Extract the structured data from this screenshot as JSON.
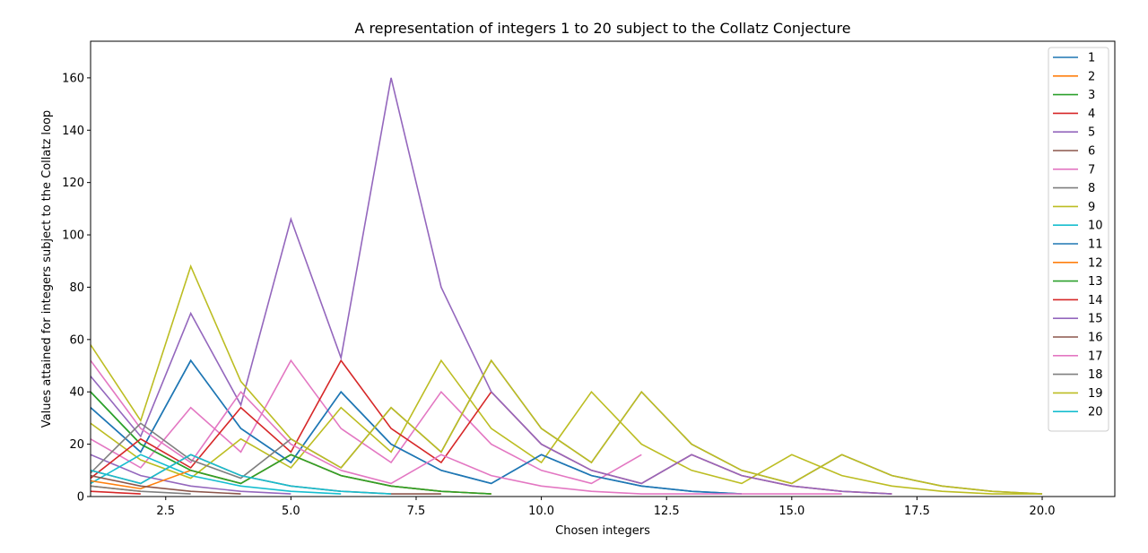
{
  "chart_data": {
    "type": "line",
    "title": "A representation of integers 1 to 20 subject to the Collatz Conjecture",
    "xlabel": "Chosen integers",
    "ylabel": "Values attained for integers subject to the Collatz loop",
    "xlim": [
      1,
      21.45
    ],
    "ylim": [
      0,
      174
    ],
    "xticks": [
      2.5,
      5.0,
      7.5,
      10.0,
      12.5,
      15.0,
      17.5,
      20.0
    ],
    "xtick_labels": [
      "2.5",
      "5.0",
      "7.5",
      "10.0",
      "12.5",
      "15.0",
      "17.5",
      "20.0"
    ],
    "yticks": [
      0,
      20,
      40,
      60,
      80,
      100,
      120,
      140,
      160
    ],
    "ytick_labels": [
      "0",
      "20",
      "40",
      "60",
      "80",
      "100",
      "120",
      "140",
      "160"
    ],
    "grid": false,
    "legend_position": "top-right",
    "series": [
      {
        "name": "1",
        "color": "#1f77b4",
        "x": [
          1,
          2,
          3,
          4,
          5,
          6,
          7,
          8,
          9,
          10,
          11,
          12,
          13,
          14
        ],
        "values": [
          34,
          17,
          52,
          26,
          13,
          40,
          20,
          10,
          5,
          16,
          8,
          4,
          2,
          1
        ]
      },
      {
        "name": "2",
        "color": "#ff7f0e",
        "x": [
          1,
          2
        ],
        "values": [
          4,
          2
        ]
      },
      {
        "name": "3",
        "color": "#2ca02c",
        "x": [
          1,
          2,
          3,
          4,
          5,
          6,
          7,
          8,
          9
        ],
        "values": [
          40,
          20,
          10,
          5,
          16,
          8,
          4,
          2,
          1
        ]
      },
      {
        "name": "4",
        "color": "#d62728",
        "x": [
          1,
          2
        ],
        "values": [
          2,
          1
        ]
      },
      {
        "name": "5",
        "color": "#9467bd",
        "x": [
          1,
          2,
          3,
          4,
          5
        ],
        "values": [
          16,
          8,
          4,
          2,
          1
        ]
      },
      {
        "name": "6",
        "color": "#8c564b",
        "x": [
          1,
          2,
          3,
          4,
          5,
          6,
          7,
          8
        ],
        "values": [
          10,
          5,
          16,
          8,
          4,
          2,
          1,
          1
        ]
      },
      {
        "name": "7",
        "color": "#e377c2",
        "x": [
          1,
          2,
          3,
          4,
          5,
          6,
          7,
          8,
          9,
          10,
          11,
          12
        ],
        "values": [
          22,
          11,
          34,
          17,
          52,
          26,
          13,
          40,
          20,
          10,
          5,
          16
        ]
      },
      {
        "name": "8",
        "color": "#7f7f7f",
        "x": [
          1,
          2,
          3
        ],
        "values": [
          4,
          2,
          1
        ]
      },
      {
        "name": "9",
        "color": "#bcbd22",
        "x": [
          1,
          2,
          3,
          4,
          5,
          6,
          7,
          8,
          9,
          10,
          11,
          12,
          13,
          14,
          15,
          16,
          17,
          18,
          19,
          20
        ],
        "values": [
          28,
          14,
          7,
          22,
          11,
          34,
          17,
          52,
          26,
          13,
          40,
          20,
          10,
          5,
          16,
          8,
          4,
          2,
          1,
          1
        ]
      },
      {
        "name": "10",
        "color": "#17becf",
        "x": [
          1,
          2,
          3,
          4,
          5,
          6
        ],
        "values": [
          5,
          16,
          8,
          4,
          2,
          1
        ]
      },
      {
        "name": "11",
        "color": "#1f77b4",
        "x": [
          1,
          2,
          3,
          4,
          5,
          6,
          7,
          8,
          9,
          10,
          11,
          12,
          13,
          14
        ],
        "values": [
          34,
          17,
          52,
          26,
          13,
          40,
          20,
          10,
          5,
          16,
          8,
          4,
          2,
          1
        ]
      },
      {
        "name": "12",
        "color": "#ff7f0e",
        "x": [
          1,
          2,
          3,
          4,
          5,
          6,
          7,
          8,
          9
        ],
        "values": [
          6,
          3,
          10,
          5,
          16,
          8,
          4,
          2,
          1
        ]
      },
      {
        "name": "13",
        "color": "#2ca02c",
        "x": [
          1,
          2,
          3,
          4,
          5,
          6,
          7,
          8,
          9
        ],
        "values": [
          40,
          20,
          10,
          5,
          16,
          8,
          4,
          2,
          1
        ]
      },
      {
        "name": "14",
        "color": "#d62728",
        "x": [
          1,
          2,
          3,
          4,
          5,
          6,
          7,
          8,
          9,
          10,
          11,
          12,
          13,
          14,
          15,
          16,
          17
        ],
        "values": [
          7,
          22,
          11,
          34,
          17,
          52,
          26,
          13,
          40,
          20,
          10,
          5,
          16,
          8,
          4,
          2,
          1
        ]
      },
      {
        "name": "15",
        "color": "#9467bd",
        "x": [
          1,
          2,
          3,
          4,
          5,
          6,
          7,
          8,
          9,
          10,
          11,
          12,
          13,
          14,
          15,
          16,
          17
        ],
        "values": [
          46,
          23,
          70,
          35,
          106,
          53,
          160,
          80,
          40,
          20,
          10,
          5,
          16,
          8,
          4,
          2,
          1
        ]
      },
      {
        "name": "16",
        "color": "#8c564b",
        "x": [
          1,
          2,
          3,
          4
        ],
        "values": [
          8,
          4,
          2,
          1
        ]
      },
      {
        "name": "17",
        "color": "#e377c2",
        "x": [
          1,
          2,
          3,
          4,
          5,
          6,
          7,
          8,
          9,
          10,
          11,
          12,
          13,
          14,
          15,
          16
        ],
        "values": [
          52,
          26,
          13,
          40,
          20,
          10,
          5,
          16,
          8,
          4,
          2,
          1,
          1,
          1,
          1,
          1
        ]
      },
      {
        "name": "18",
        "color": "#7f7f7f",
        "x": [
          1,
          2,
          3,
          4,
          5,
          6,
          7,
          8,
          9,
          10,
          11,
          12,
          13,
          14,
          15,
          16,
          17,
          18,
          19,
          20
        ],
        "values": [
          9,
          28,
          14,
          7,
          22,
          11,
          34,
          17,
          52,
          26,
          13,
          40,
          20,
          10,
          5,
          16,
          8,
          4,
          2,
          1
        ]
      },
      {
        "name": "19",
        "color": "#bcbd22",
        "x": [
          1,
          2,
          3,
          4,
          5,
          6,
          7,
          8,
          9,
          10,
          11,
          12,
          13,
          14,
          15,
          16,
          17,
          18,
          19,
          20
        ],
        "values": [
          58,
          29,
          88,
          44,
          22,
          11,
          34,
          17,
          52,
          26,
          13,
          40,
          20,
          10,
          5,
          16,
          8,
          4,
          2,
          1
        ]
      },
      {
        "name": "20",
        "color": "#17becf",
        "x": [
          1,
          2,
          3,
          4,
          5,
          6,
          7
        ],
        "values": [
          10,
          5,
          16,
          8,
          4,
          2,
          1
        ]
      }
    ]
  }
}
